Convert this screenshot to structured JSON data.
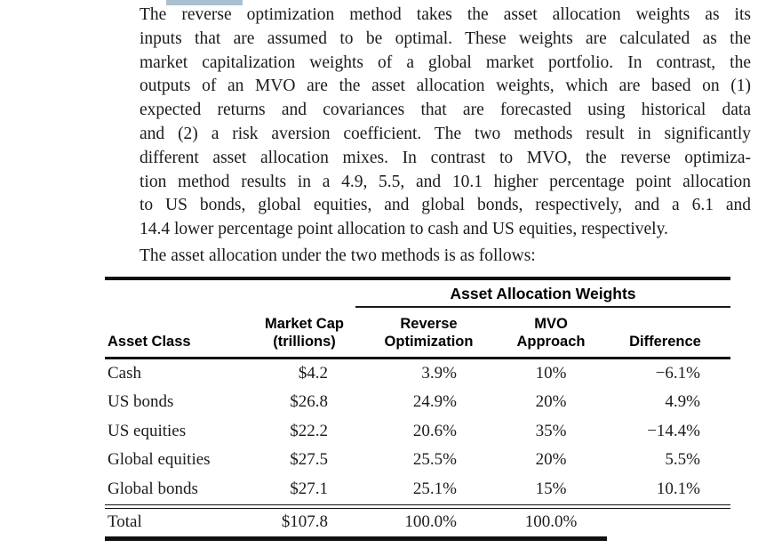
{
  "intro": {
    "lines": [
      "The reverse optimization method takes the asset allocation weights as its",
      "inputs that are assumed to be optimal. These weights are calculated as the",
      "market capitalization weights of a global market portfolio. In contrast, the",
      "outputs of an MVO are the asset allocation weights, which are based on (1)",
      "expected returns and covariances that are forecasted using historical data",
      "and (2) a risk aversion coefficient. The two methods result in significantly",
      "different asset allocation mixes. In contrast to MVO, the reverse optimiza-",
      "tion method results in a 4.9, 5.5, and 10.1 higher percentage point allocation",
      "to US bonds, global equities, and global bonds, respectively, and a 6.1 and",
      "14.4 lower percentage point allocation to cash and US equities, respectively."
    ],
    "followup": "The asset allocation under the two methods is as follows:"
  },
  "table": {
    "group_header": "Asset Allocation Weights",
    "headers": {
      "asset_class": "Asset Class",
      "market_cap": "Market Cap\n(trillions)",
      "reverse_optimization": "Reverse\nOptimization",
      "mvo_approach": "MVO\nApproach",
      "difference": "Difference"
    },
    "rows": [
      [
        "Cash",
        "$4.2",
        "3.9%",
        "10%",
        "−6.1%"
      ],
      [
        "US bonds",
        "$26.8",
        "24.9%",
        "20%",
        "4.9%"
      ],
      [
        "US equities",
        "$22.2",
        "20.6%",
        "35%",
        "−14.4%"
      ],
      [
        "Global equities",
        "$27.5",
        "25.5%",
        "20%",
        "5.5%"
      ],
      [
        "Global bonds",
        "$27.1",
        "25.1%",
        "15%",
        "10.1%"
      ]
    ],
    "total_row": [
      "Total",
      "$107.8",
      "100.0%",
      "100.0%",
      ""
    ]
  },
  "colors": {
    "text": "#1b1b1b",
    "rule": "#101010",
    "highlight_fragment": "#a9c0d0"
  }
}
